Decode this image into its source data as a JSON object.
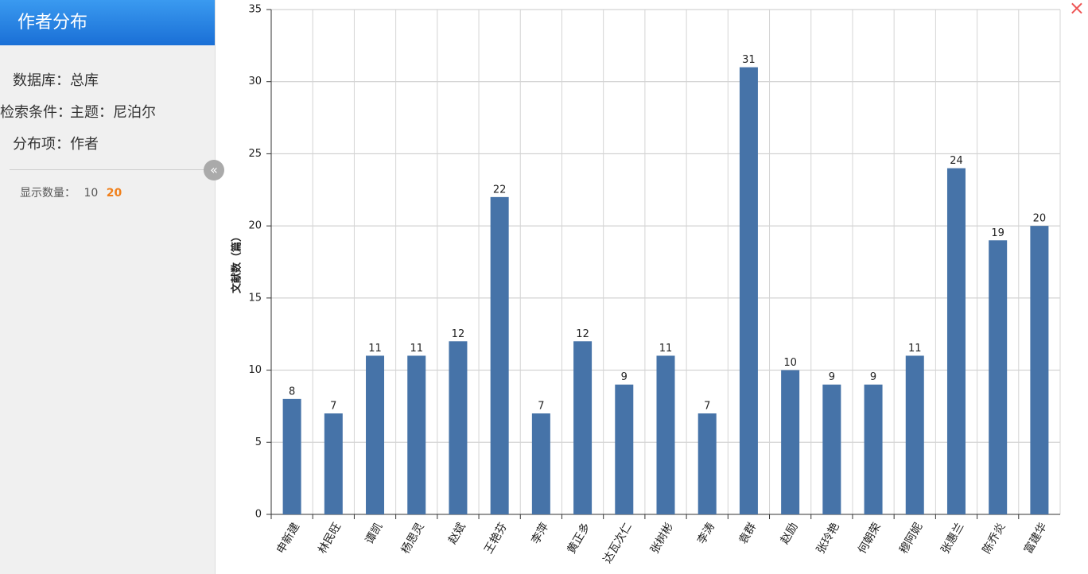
{
  "sidebar": {
    "title": "作者分布",
    "fields": [
      {
        "label": "数据库：",
        "value": "总库"
      },
      {
        "label": "检索条件：",
        "value": "主题：尼泊尔"
      },
      {
        "label": "分布项：",
        "value": "作者"
      }
    ],
    "display_count": {
      "label": "显示数量：",
      "options": [
        10,
        20
      ]
    }
  },
  "chart_data": {
    "type": "bar",
    "y_label": "文献数（篇）",
    "categories": [
      "申新建",
      "林民旺",
      "谭凯",
      "杨思灵",
      "赵斌",
      "王艳芬",
      "李萍",
      "黄正多",
      "达瓦次仁",
      "张树彬",
      "李涛",
      "袁群",
      "赵励",
      "张玲艳",
      "何朝荣",
      "穆阿妮",
      "张惠兰",
      "陈乔炎",
      "富建华"
    ],
    "values": [
      8,
      7,
      11,
      11,
      12,
      22,
      7,
      12,
      9,
      11,
      7,
      31,
      10,
      9,
      9,
      11,
      24,
      19,
      20
    ],
    "color": "#4673a8",
    "ylim": [
      0,
      35
    ],
    "yticks": [
      0,
      5,
      10,
      15,
      20,
      25,
      30,
      35
    ],
    "grid": true
  }
}
